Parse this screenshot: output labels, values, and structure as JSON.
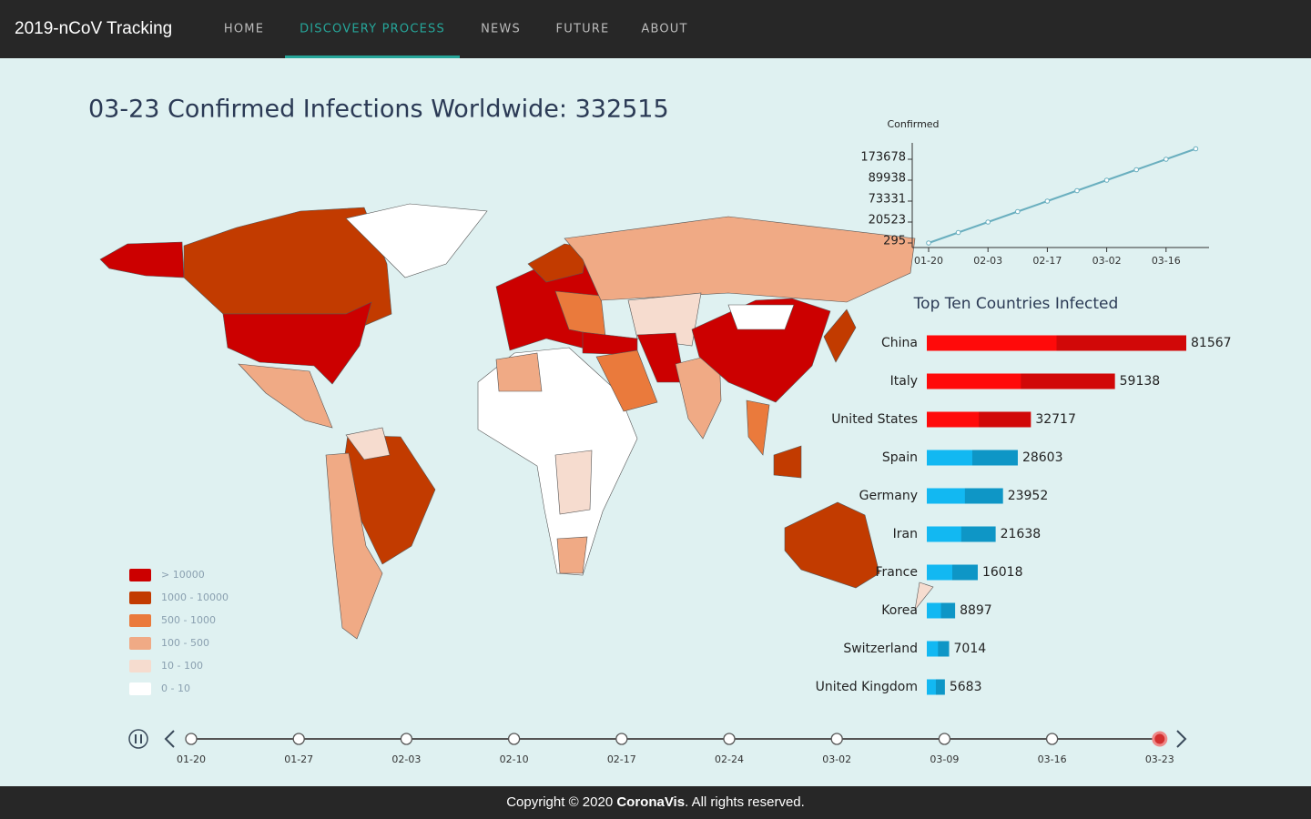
{
  "nav": {
    "brand": "2019-nCoV Tracking",
    "items": [
      "HOME",
      "DISCOVERY PROCESS",
      "NEWS",
      "FUTURE",
      "ABOUT"
    ],
    "active": 1
  },
  "title": "03-23 Confirmed Infections Worldwide: 332515",
  "line_chart": {
    "type": "line",
    "y_label": "Confirmed",
    "y_scale": "ordinal",
    "color": "#6aafbf",
    "x": [
      "01-20",
      "01-27",
      "02-03",
      "02-10",
      "02-17",
      "02-24",
      "03-02",
      "03-09",
      "03-16",
      "03-23"
    ],
    "values": [
      295,
      2886,
      20523,
      42708,
      73331,
      79331,
      89938,
      113000,
      173678,
      332515
    ],
    "xticks": [
      "01-20",
      "02-03",
      "02-17",
      "03-02",
      "03-16"
    ],
    "yticks": [
      295,
      20523,
      73331,
      89938,
      173678
    ]
  },
  "bar_chart": {
    "type": "bar",
    "title": "Top Ten Countries Infected",
    "categories": [
      "China",
      "Italy",
      "United States",
      "Spain",
      "Germany",
      "Iran",
      "France",
      "Korea",
      "Switzerland",
      "United Kingdom"
    ],
    "values": [
      81567,
      59138,
      32717,
      28603,
      23952,
      21638,
      16018,
      8897,
      7014,
      5683
    ],
    "colors": [
      "#ff0a0a",
      "#ff0a0a",
      "#ff0a0a",
      "#12b8f2",
      "#12b8f2",
      "#12b8f2",
      "#12b8f2",
      "#12b8f2",
      "#12b8f2",
      "#12b8f2"
    ]
  },
  "legend": {
    "items": [
      {
        "label": "> 10000",
        "color": "#cc0000"
      },
      {
        "label": "1000 - 10000",
        "color": "#c23b00"
      },
      {
        "label": "500 - 1000",
        "color": "#ea7a3c"
      },
      {
        "label": "100 - 500",
        "color": "#f0aa85"
      },
      {
        "label": "10 - 100",
        "color": "#f6dccf"
      },
      {
        "label": "0 - 10",
        "color": "#ffffff"
      }
    ]
  },
  "timeline": {
    "dates": [
      "01-20",
      "01-27",
      "02-03",
      "02-10",
      "02-17",
      "02-24",
      "03-02",
      "03-09",
      "03-16",
      "03-23"
    ],
    "current": 9
  },
  "footer": {
    "prefix": "Copyright © 2020 ",
    "brand": "CoronaVis",
    "suffix": ". All rights reserved."
  }
}
